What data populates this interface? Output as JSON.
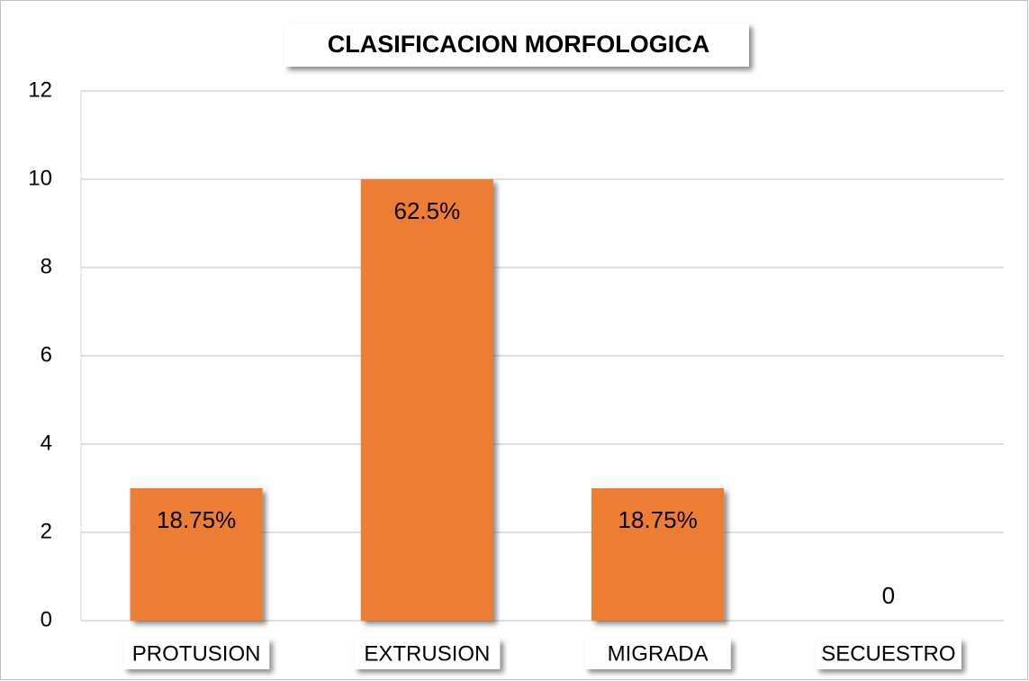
{
  "chart_data": {
    "type": "bar",
    "title": "CLASIFICACION MORFOLOGICA",
    "categories": [
      "PROTUSION",
      "EXTRUSION",
      "MIGRADA",
      "SECUESTRO"
    ],
    "values": [
      3,
      10,
      3,
      0
    ],
    "annotations": [
      "18.75%",
      "62.5%",
      "18.75%",
      "0"
    ],
    "color": "#ed7d31",
    "ylim": [
      0,
      12
    ],
    "yticks": [
      0,
      2,
      4,
      6,
      8,
      10,
      12
    ],
    "grid": true
  }
}
